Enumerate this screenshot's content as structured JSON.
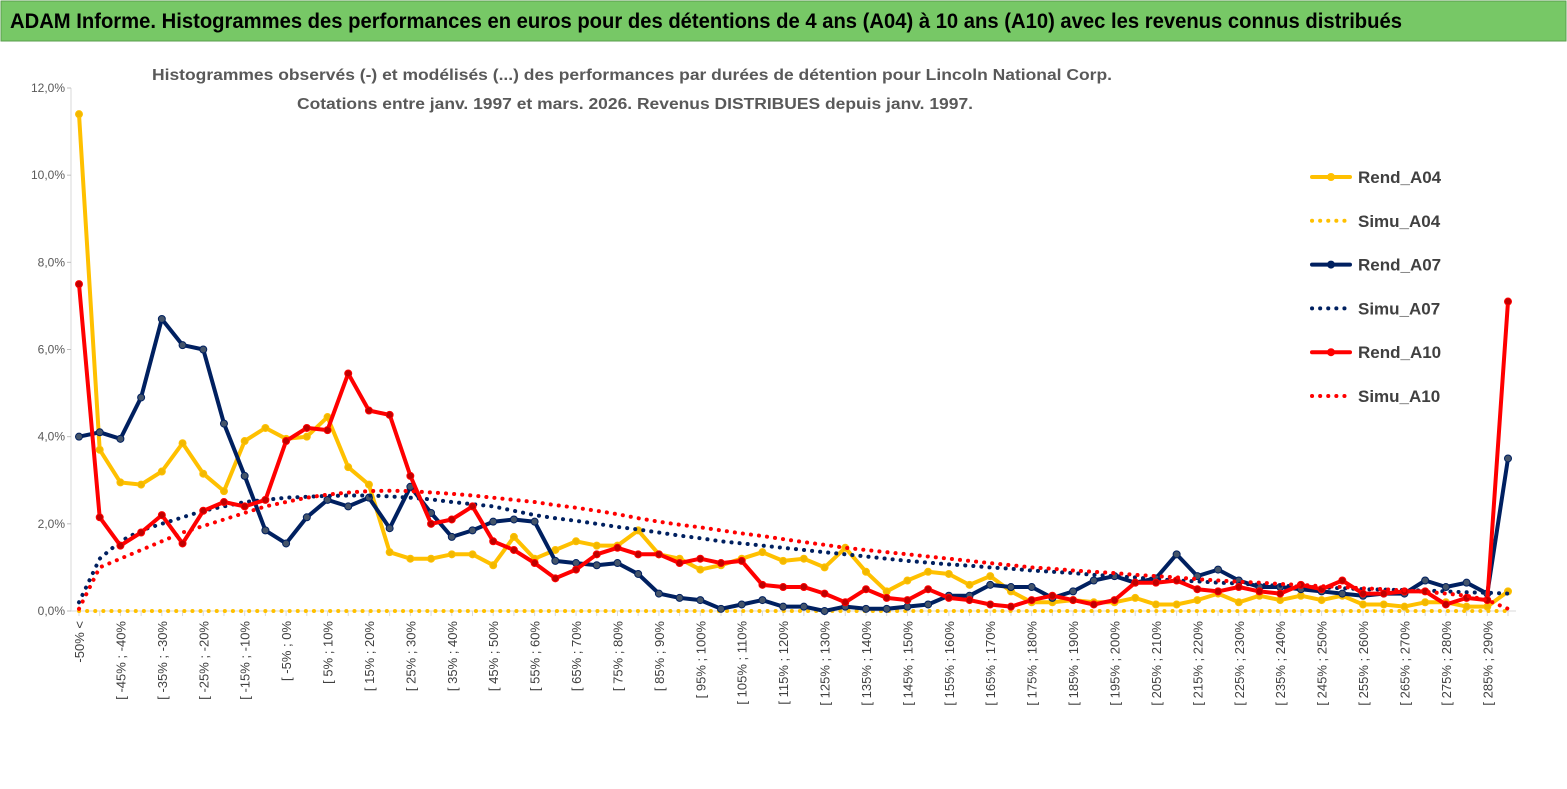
{
  "header": {
    "title": "ADAM Informe. Histogrammes des performances en euros pour des détentions de 4 ans (A04) à 10 ans (A10) avec les revenus connus distribués"
  },
  "chart_data": {
    "type": "line",
    "subtitle": [
      "Histogrammes observés (-) et modélisés (...) des performances par durées de détention pour Lincoln National Corp.",
      "Cotations entre janv. 1997 et mars. 2026. Revenus DISTRIBUES depuis janv. 1997."
    ],
    "categories": [
      "-50% <",
      null,
      "[ -45% ; -40%",
      null,
      "[ -35% ; -30%",
      null,
      "[ -25% ; -20%",
      null,
      "[ -15% ; -10%",
      null,
      "[ -5% ; 0%",
      null,
      "[ 5% ; 10%",
      null,
      "[ 15% ; 20%",
      null,
      "[ 25% ; 30%",
      null,
      "[ 35% ; 40%",
      null,
      "[ 45% ; 50%",
      null,
      "[ 55% ; 60%",
      null,
      "[ 65% ; 70%",
      null,
      "[ 75% ; 80%",
      null,
      "[ 85% ; 90%",
      null,
      "[ 95% ; 100%",
      null,
      "[ 105% ; 110%",
      null,
      "[ 115% ; 120%",
      null,
      "[ 125% ; 130%",
      null,
      "[ 135% ; 140%",
      null,
      "[ 145% ; 150%",
      null,
      "[ 155% ; 160%",
      null,
      "[ 165% ; 170%",
      null,
      "[ 175% ; 180%",
      null,
      "[ 185% ; 190%",
      null,
      "[ 195% ; 200%",
      null,
      "[ 205% ; 210%",
      null,
      "[ 215% ; 220%",
      null,
      "[ 225% ; 230%",
      null,
      "[ 235% ; 240%",
      null,
      "[ 245% ; 250%",
      null,
      "[ 255% ; 260%",
      null,
      "[ 265% ; 270%",
      null,
      "[ 275% ; 280%",
      null,
      "[ 285% ; 290%",
      null
    ],
    "ylim": [
      0,
      12
    ],
    "yticks": [
      {
        "value": 0,
        "label": "0,0%"
      },
      {
        "value": 2,
        "label": "2,0%"
      },
      {
        "value": 4,
        "label": "4,0%"
      },
      {
        "value": 6,
        "label": "6,0%"
      },
      {
        "value": 8,
        "label": "8,0%"
      },
      {
        "value": 10,
        "label": "10,0%"
      },
      {
        "value": 12,
        "label": "12,0%"
      }
    ],
    "legend": "right",
    "series": [
      {
        "name": "Rend_A04",
        "color": "#ffc000",
        "style": "solid",
        "markers": true,
        "values": [
          11.4,
          3.7,
          2.95,
          2.9,
          3.2,
          3.85,
          3.15,
          2.75,
          3.9,
          4.2,
          3.95,
          4.0,
          4.45,
          3.3,
          2.9,
          1.35,
          1.2,
          1.2,
          1.3,
          1.3,
          1.05,
          1.7,
          1.2,
          1.4,
          1.6,
          1.5,
          1.5,
          1.85,
          1.3,
          1.2,
          0.95,
          1.05,
          1.2,
          1.35,
          1.15,
          1.2,
          1.0,
          1.45,
          0.9,
          0.45,
          0.7,
          0.9,
          0.85,
          0.6,
          0.8,
          0.45,
          0.2,
          0.2,
          0.25,
          0.2,
          0.2,
          0.3,
          0.15,
          0.15,
          0.25,
          0.4,
          0.2,
          0.35,
          0.25,
          0.35,
          0.25,
          0.35,
          0.15,
          0.15,
          0.1,
          0.2,
          0.2,
          0.1,
          0.1,
          0.45
        ]
      },
      {
        "name": "Simu_A04",
        "color": "#ffc000",
        "style": "dotted",
        "markers": false,
        "values": [
          0,
          0,
          0,
          0,
          0,
          0,
          0,
          0,
          0,
          0,
          0,
          0,
          0,
          0,
          0,
          0,
          0,
          0,
          0,
          0,
          0,
          0,
          0,
          0,
          0,
          0,
          0,
          0,
          0,
          0,
          0,
          0,
          0,
          0,
          0,
          0,
          0,
          0,
          0,
          0,
          0,
          0,
          0,
          0,
          0,
          0,
          0,
          0,
          0,
          0,
          0,
          0,
          0,
          0,
          0,
          0,
          0,
          0,
          0,
          0,
          0,
          0,
          0,
          0,
          0,
          0,
          0,
          0,
          0,
          0
        ]
      },
      {
        "name": "Rend_A07",
        "color": "#002060",
        "style": "solid",
        "markers": true,
        "values": [
          4.0,
          4.1,
          3.95,
          4.9,
          6.7,
          6.1,
          6.0,
          4.3,
          3.1,
          1.85,
          1.55,
          2.15,
          2.55,
          2.4,
          2.6,
          1.9,
          2.85,
          2.25,
          1.7,
          1.85,
          2.05,
          2.1,
          2.05,
          1.15,
          1.1,
          1.05,
          1.1,
          0.85,
          0.4,
          0.3,
          0.25,
          0.05,
          0.15,
          0.25,
          0.1,
          0.1,
          0.0,
          0.1,
          0.05,
          0.05,
          0.1,
          0.15,
          0.35,
          0.35,
          0.6,
          0.55,
          0.55,
          0.3,
          0.45,
          0.7,
          0.8,
          0.65,
          0.75,
          1.3,
          0.8,
          0.95,
          0.7,
          0.55,
          0.55,
          0.5,
          0.45,
          0.4,
          0.35,
          0.4,
          0.4,
          0.7,
          0.55,
          0.65,
          0.4,
          3.5
        ]
      },
      {
        "name": "Simu_A07",
        "color": "#002060",
        "style": "dotted",
        "markers": false,
        "values": [
          0.2,
          1.2,
          1.6,
          1.85,
          2.0,
          2.15,
          2.3,
          2.4,
          2.5,
          2.55,
          2.6,
          2.62,
          2.64,
          2.65,
          2.65,
          2.63,
          2.6,
          2.56,
          2.5,
          2.45,
          2.4,
          2.3,
          2.2,
          2.13,
          2.07,
          2.0,
          1.93,
          1.87,
          1.8,
          1.73,
          1.67,
          1.6,
          1.55,
          1.5,
          1.45,
          1.4,
          1.35,
          1.3,
          1.25,
          1.2,
          1.15,
          1.11,
          1.07,
          1.04,
          1.0,
          0.97,
          0.93,
          0.9,
          0.87,
          0.83,
          0.8,
          0.77,
          0.73,
          0.7,
          0.68,
          0.65,
          0.63,
          0.6,
          0.58,
          0.56,
          0.54,
          0.52,
          0.5,
          0.49,
          0.48,
          0.47,
          0.45,
          0.43,
          0.42,
          0.4
        ]
      },
      {
        "name": "Rend_A10",
        "color": "#ff0000",
        "style": "solid",
        "markers": true,
        "values": [
          7.5,
          2.15,
          1.5,
          1.8,
          2.2,
          1.55,
          2.3,
          2.5,
          2.4,
          2.55,
          3.9,
          4.2,
          4.15,
          5.45,
          4.6,
          4.5,
          3.1,
          2.0,
          2.1,
          2.4,
          1.6,
          1.4,
          1.1,
          0.75,
          0.95,
          1.3,
          1.45,
          1.3,
          1.3,
          1.1,
          1.2,
          1.1,
          1.15,
          0.6,
          0.55,
          0.55,
          0.4,
          0.2,
          0.5,
          0.3,
          0.25,
          0.5,
          0.3,
          0.25,
          0.15,
          0.1,
          0.25,
          0.35,
          0.25,
          0.15,
          0.25,
          0.65,
          0.65,
          0.7,
          0.5,
          0.45,
          0.55,
          0.45,
          0.4,
          0.6,
          0.5,
          0.7,
          0.4,
          0.4,
          0.45,
          0.45,
          0.15,
          0.3,
          0.25,
          7.1
        ]
      },
      {
        "name": "Simu_A10",
        "color": "#ff0000",
        "style": "dotted",
        "markers": false,
        "values": [
          0.05,
          1.0,
          1.2,
          1.4,
          1.6,
          1.8,
          1.95,
          2.1,
          2.25,
          2.4,
          2.5,
          2.6,
          2.67,
          2.72,
          2.75,
          2.76,
          2.75,
          2.72,
          2.69,
          2.65,
          2.6,
          2.55,
          2.5,
          2.43,
          2.37,
          2.3,
          2.22,
          2.13,
          2.05,
          1.98,
          1.92,
          1.85,
          1.78,
          1.72,
          1.65,
          1.58,
          1.52,
          1.45,
          1.4,
          1.35,
          1.3,
          1.25,
          1.2,
          1.15,
          1.1,
          1.05,
          1.0,
          0.97,
          0.93,
          0.9,
          0.87,
          0.83,
          0.8,
          0.77,
          0.73,
          0.7,
          0.67,
          0.65,
          0.62,
          0.6,
          0.57,
          0.55,
          0.52,
          0.5,
          0.47,
          0.44,
          0.4,
          0.35,
          0.25,
          0.05
        ]
      }
    ]
  }
}
